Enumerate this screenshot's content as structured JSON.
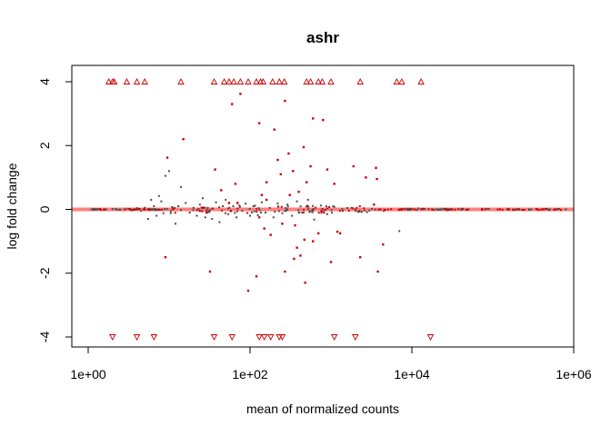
{
  "chart_data": {
    "type": "scatter",
    "title": "ashr",
    "xlabel": "mean of normalized counts",
    "ylabel": "log fold change",
    "x_scale": "log10",
    "xlim": [
      1,
      1000000
    ],
    "ylim": [
      -4,
      4
    ],
    "x_ticks": [
      1,
      100,
      10000,
      1000000
    ],
    "x_tick_labels": [
      "1e+00",
      "1e+02",
      "1e+04",
      "1e+06"
    ],
    "y_ticks": [
      -4,
      -2,
      0,
      2,
      4
    ],
    "y_tick_labels": [
      "-4",
      "-2",
      "0",
      "2",
      "4"
    ],
    "reference_line": {
      "y": 0,
      "color": "#ff7f7f"
    },
    "colors": {
      "significant": "#cc0000",
      "not_significant": "#4d4d4d"
    },
    "clipped_up": [
      1.8,
      2.0,
      2.1,
      3.0,
      4.0,
      5.0,
      14,
      36,
      48,
      55,
      63,
      76,
      95,
      120,
      135,
      145,
      190,
      230,
      265,
      500,
      560,
      700,
      780,
      1000,
      2300,
      6500,
      7500,
      13000
    ],
    "clipped_down": [
      2.0,
      4.0,
      6.5,
      36,
      60,
      130,
      150,
      180,
      230,
      250,
      1100,
      2000,
      17000
    ],
    "significant_points": [
      [
        9.5,
        1.62
      ],
      [
        9.0,
        -1.5
      ],
      [
        15,
        2.2
      ],
      [
        32,
        -1.95
      ],
      [
        37,
        1.25
      ],
      [
        44,
        0.6
      ],
      [
        55,
        0.2
      ],
      [
        60,
        3.3
      ],
      [
        66,
        0.8
      ],
      [
        70,
        0.2
      ],
      [
        76,
        3.62
      ],
      [
        58,
        -0.05
      ],
      [
        120,
        -2.1
      ],
      [
        130,
        2.7
      ],
      [
        140,
        0.45
      ],
      [
        150,
        -0.6
      ],
      [
        160,
        0.85
      ],
      [
        200,
        2.5
      ],
      [
        220,
        1.55
      ],
      [
        240,
        1.1
      ],
      [
        270,
        3.4
      ],
      [
        300,
        1.75
      ],
      [
        310,
        0.45
      ],
      [
        340,
        1.2
      ],
      [
        360,
        -0.5
      ],
      [
        380,
        -1.2
      ],
      [
        400,
        0.55
      ],
      [
        460,
        1.95
      ],
      [
        470,
        -0.95
      ],
      [
        500,
        0.85
      ],
      [
        560,
        1.35
      ],
      [
        600,
        2.85
      ],
      [
        700,
        -0.75
      ],
      [
        800,
        2.8
      ],
      [
        900,
        1.25
      ],
      [
        1100,
        0.8
      ],
      [
        1200,
        -0.7
      ],
      [
        1300,
        -0.75
      ],
      [
        1900,
        1.35
      ],
      [
        2300,
        -1.5
      ],
      [
        2700,
        1.0
      ],
      [
        3400,
        0.15
      ],
      [
        3600,
        1.3
      ],
      [
        3700,
        0.95
      ],
      [
        3800,
        -1.95
      ],
      [
        4400,
        -1.1
      ],
      [
        600,
        -1.0
      ],
      [
        250,
        -0.45
      ],
      [
        180,
        -0.8
      ],
      [
        350,
        -1.55
      ],
      [
        420,
        -1.45
      ],
      [
        270,
        -1.95
      ],
      [
        1000,
        -1.65
      ],
      [
        95,
        -2.55
      ],
      [
        480,
        -2.3
      ],
      [
        130,
        -0.25
      ],
      [
        160,
        0.3
      ]
    ],
    "nonsignificant_points": [
      [
        1.1,
        0.0
      ],
      [
        1.3,
        0.0
      ],
      [
        1.6,
        0.0
      ],
      [
        2.0,
        0.01
      ],
      [
        2.5,
        -0.01
      ],
      [
        3.0,
        0.02
      ],
      [
        3.5,
        -0.03
      ],
      [
        4.0,
        0.04
      ],
      [
        4.5,
        -0.05
      ],
      [
        5.0,
        0.05
      ],
      [
        5.5,
        -0.3
      ],
      [
        6.0,
        0.3
      ],
      [
        6.5,
        0.1
      ],
      [
        7.0,
        -0.2
      ],
      [
        7.5,
        0.42
      ],
      [
        8.0,
        0.25
      ],
      [
        8.5,
        -0.12
      ],
      [
        9.0,
        1.05
      ],
      [
        10,
        1.2
      ],
      [
        11,
        0.05
      ],
      [
        12,
        -0.45
      ],
      [
        13,
        0.1
      ],
      [
        14,
        0.7
      ],
      [
        16,
        0.2
      ],
      [
        18,
        -0.1
      ],
      [
        20,
        0.05
      ],
      [
        22,
        -0.2
      ],
      [
        24,
        0.15
      ],
      [
        26,
        0.35
      ],
      [
        28,
        -0.25
      ],
      [
        30,
        0.05
      ],
      [
        34,
        -0.3
      ],
      [
        38,
        0.22
      ],
      [
        42,
        -0.4
      ],
      [
        46,
        0.1
      ],
      [
        50,
        0.3
      ],
      [
        54,
        -0.15
      ],
      [
        62,
        0.1
      ],
      [
        68,
        -0.25
      ],
      [
        74,
        0.12
      ],
      [
        80,
        -0.05
      ],
      [
        88,
        0.18
      ],
      [
        100,
        -0.2
      ],
      [
        110,
        0.1
      ],
      [
        125,
        -0.18
      ],
      [
        140,
        0.22
      ],
      [
        155,
        -0.1
      ],
      [
        175,
        0.05
      ],
      [
        195,
        -0.25
      ],
      [
        220,
        0.18
      ],
      [
        250,
        -0.12
      ],
      [
        290,
        0.15
      ],
      [
        330,
        -0.2
      ],
      [
        380,
        0.25
      ],
      [
        440,
        -0.1
      ],
      [
        520,
        0.3
      ],
      [
        620,
        -0.32
      ],
      [
        750,
        0.12
      ],
      [
        900,
        -0.15
      ],
      [
        1100,
        0.08
      ],
      [
        1400,
        -0.05
      ],
      [
        1800,
        0.05
      ],
      [
        2400,
        -0.08
      ],
      [
        3200,
        0.02
      ],
      [
        4500,
        -0.05
      ],
      [
        7000,
        -0.68
      ],
      [
        9000,
        0.02
      ],
      [
        12000,
        0.03
      ],
      [
        20000,
        0.0
      ],
      [
        30000,
        0.0
      ],
      [
        50000,
        0.0
      ],
      [
        80000,
        0.0
      ],
      [
        150000,
        0.0
      ],
      [
        300000,
        0.0
      ],
      [
        500000,
        0.0
      ],
      [
        800000,
        0.0
      ]
    ],
    "legend": "none",
    "grid": false
  }
}
